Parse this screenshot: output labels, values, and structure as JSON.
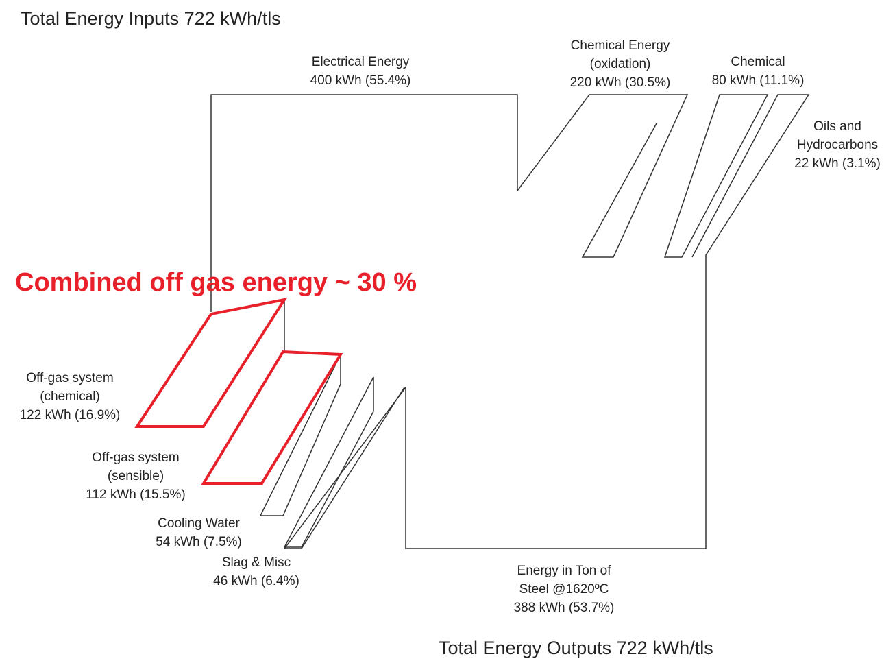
{
  "title_inputs": "Total Energy Inputs 722 kWh/tls",
  "title_outputs": "Total Energy Outputs 722 kWh/tls",
  "annotation": "Combined off gas energy ~ 30 %",
  "inputs": [
    {
      "lines": [
        "Electrical Energy",
        "400 kWh (55.4%)"
      ]
    },
    {
      "lines": [
        "Chemical Energy",
        "(oxidation)",
        "220 kWh (30.5%)"
      ]
    },
    {
      "lines": [
        "Chemical",
        "80 kWh (11.1%)"
      ]
    },
    {
      "lines": [
        "Oils and",
        "Hydrocarbons",
        "22 kWh (3.1%)"
      ]
    }
  ],
  "outputs": [
    {
      "lines": [
        "Off-gas system",
        "(chemical)",
        "122 kWh (16.9%)"
      ]
    },
    {
      "lines": [
        "Off-gas system",
        "(sensible)",
        "112 kWh (15.5%)"
      ]
    },
    {
      "lines": [
        "Cooling Water",
        "54 kWh (7.5%)"
      ]
    },
    {
      "lines": [
        "Slag & Misc",
        "46 kWh (6.4%)"
      ]
    },
    {
      "lines": [
        "Energy in Ton of",
        "Steel @1620ºC",
        "388 kWh (53.7%)"
      ]
    }
  ]
}
